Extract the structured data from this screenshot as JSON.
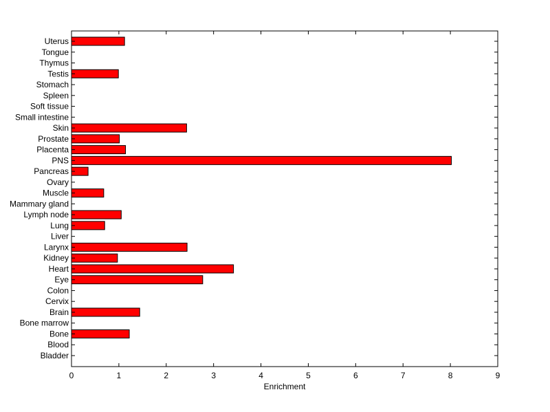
{
  "chart_data": {
    "type": "bar",
    "orientation": "horizontal",
    "title": "",
    "xlabel": "Enrichment",
    "ylabel": "",
    "xlim": [
      0,
      9
    ],
    "x_ticks": [
      "0",
      "1",
      "2",
      "3",
      "4",
      "5",
      "6",
      "7",
      "8",
      "9"
    ],
    "grid": false,
    "legend": "none",
    "bar_color": "#ff0000",
    "bar_edge_color": "#000000",
    "categories": [
      "Bladder",
      "Blood",
      "Bone",
      "Bone marrow",
      "Brain",
      "Cervix",
      "Colon",
      "Eye",
      "Heart",
      "Kidney",
      "Larynx",
      "Liver",
      "Lung",
      "Lymph node",
      "Mammary gland",
      "Muscle",
      "Ovary",
      "Pancreas",
      "PNS",
      "Placenta",
      "Prostate",
      "Skin",
      "Small intestine",
      "Soft tissue",
      "Spleen",
      "Stomach",
      "Testis",
      "Thymus",
      "Tongue",
      "Uterus"
    ],
    "values": [
      0,
      0,
      1.22,
      0,
      1.44,
      0,
      0,
      2.77,
      3.42,
      0.97,
      2.44,
      0,
      0.7,
      1.05,
      0,
      0.68,
      0,
      0.35,
      8.02,
      1.14,
      1.01,
      2.43,
      0,
      0,
      0,
      0,
      0.99,
      0,
      0,
      1.12
    ]
  }
}
